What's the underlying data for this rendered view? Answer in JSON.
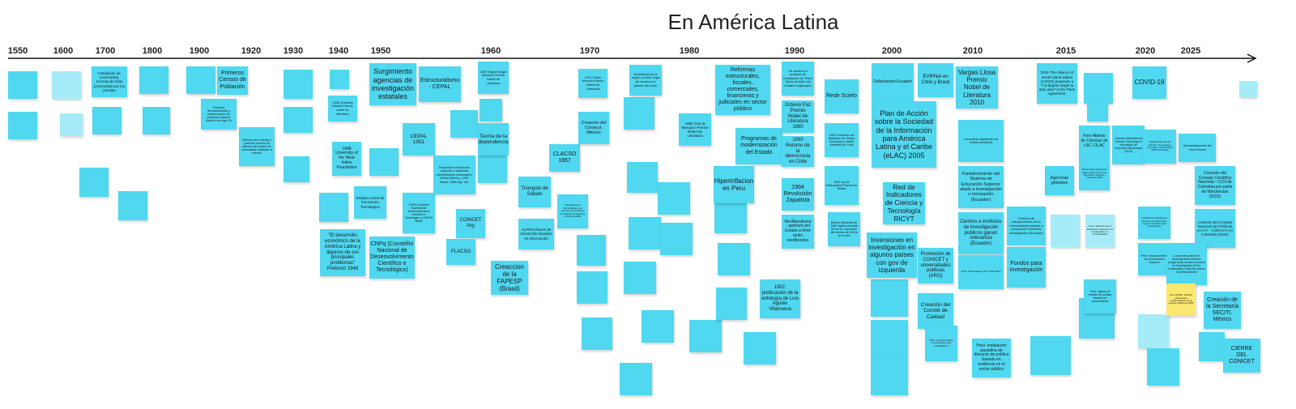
{
  "title": "En América Latina",
  "years": [
    "1550",
    "1600",
    "1700",
    "1800",
    "1900",
    "1920",
    "1930",
    "1940",
    "1950",
    "1960",
    "1970",
    "1980",
    "1990",
    "2000",
    "2010",
    "2015",
    "2020",
    "2025"
  ],
  "notes": [
    "Instalación de universidad, muchas de ellas promovidas por los jesuitas",
    "Primeros Censos de Población",
    "Procesos democratización y modernización de educación superior. Hasta fin de siglo XX",
    "Reforma de Córdoba y posterior proceso de difusión del modelo de universidad vinculada al entorno",
    "1946 Gabriela Mistral Premio nobel de literatura",
    "1948 University of the West Indies Foundation",
    "Modelo Lineal de Innovacion Tecnologica",
    "\"El desarrollo económico de la América Latina y algunos de sus principales problemas\" Prebisch 1948",
    "Surgimiento agencias de investigación estatales",
    "CNPq (Conselho Nacional de Desenvolvimento Científico e Tecnológico)",
    "Estructuralismo - CEPAL",
    "CEPAL 1951",
    "CNPq Conselho Nacional de Desenvolvimento Científico e Tecnológico y CAPES Brasil",
    "Expansión educación superior y sistemas universitarios nacionales. UNAM México, USP Brasil, UBA Arg. etc.",
    "1967 Miguel Angel Asturias Premio Nobel de Literatura",
    "Teoría de la dependencia",
    "CONICET Arg",
    "FLACSO",
    "Creaccion de la FAPESP (Brasil)",
    "Triangulo de Sábato",
    "ALPRO Planes de Desarrollo basados en información",
    "CLACSO 1967",
    "Departamento Administrativo de Ciencia, Tecnología e Innovación Colciencias Colombia 1968",
    "1971 Pablo Neruda Premio Nobel de Literatura",
    "Creación del Conacyt, México",
    "Dictaduras en la región y exilio/ fuga de cerebros a países del norte",
    "1982 García Marquez Premio Nobel de Literatura",
    "Reformas estructurales, fiscales, comerciales, financieras y judiciales en sector público",
    "Programas de modernización del Estado",
    "Hiperinflacion en Peru",
    "1992: publicación de la antología de Luis Aguilar Villanueva",
    "Se acelera el proceso de instalación de Think Tanks al estilo del modelo anglosajón",
    "Octavio Paz Premio Nobel de Literatura 1990",
    "1990 Retorno de la democracia en Chile",
    "1994 Revolución Zapatista",
    "Neoliberalismo - apertura del Estado a think tanks neoliberales",
    "Rede Scielo",
    "1994 Fundación del Ministerio de Ciencia Tecnología y Medio Ambiente de Cuba",
    "1991 Ley de Participación Popular en Bolivia",
    "Bolivia: Mediados de 1980 hasta la década de los 90, expansión del número de ONGs en el país",
    "Dolarización Ecuador",
    "Plan de Acción sobre la Sociedad de la Información para América Latina y el Caribe (eLAC) 2005",
    "Red de Indicadores de Ciencia y Tecnología RICYT",
    "Inversiones en investigación en algunos países con gov de izquierda",
    "EVIPNet en Chile y Brasil",
    "Promoción de CONICET y universidades publicas (ARG)",
    "Creación del Comité de Calidad",
    "Perú: inicio de fondos concursables para investigación",
    "Vargas Llosa Premio Nobel de Literatura 2010",
    "Crecimiento significativo de revistas científicas",
    "Fortalecimiento del Sistema de Educación Superior atado a investigación e innovación (Ecuador)",
    "Centros e institutos de investigación públicos ganan relevancia (Ecuador)",
    "Think Tank Initiative (TTI) 2008-2019",
    "Perú: Instalación paulatina de discurso de política basada en evidencia en el sector público",
    "Criterios de categorización de la universidades atadas a producción científica/ investigación (Ecuador)",
    "Fondos para investigación",
    "2015 The Alliance of Small Island States (AOSIS) proposes a \"1.5-degree target to stay alive\" in the Paris Agreement.",
    "Agencias globales",
    "Foro Abierto de Ciencias de LAC CILAC",
    "Misión Internacional de Sabios para la CTI y la Educación Superior Colombia 2019",
    "Perú: adhesión de la Educación Superior a la investigación en universidades",
    "Perú: ingreso al modelo de política basada en conocimiento",
    "Creación Ministerio de Ciencia, Tecnología e Innovación de Colombia Minciencias (2019)",
    "COVID-19",
    "Política Nacional de Ciencia, Tecnología e Innovación (2022-2031) MINC Colombia",
    "Desmantelamiento del Tercer Mundo",
    "Creación del Consejo Científico Nacional - CCN de Colombia por parte de Minciencias (2022)",
    "Creación del Consejo Nacional de Políticas en CTI - CONACTI en Colombia (2022)",
    "Instalación paulatina de discurso de evidencia y soporte científico para investigación",
    "Perú: reconocimiento de la Educación Superior",
    "Leyes de control del financiamiento externo (ongs) limita acceso a fondos de investigación (Perú, Guatemala) y falta de centros de pensamiento",
    "Perú (2020): Política nacional de modernización de la gestión pública al 2030",
    "Creación de la Secretaría SECITI, México",
    "CIERRE DEL CONICET"
  ]
}
